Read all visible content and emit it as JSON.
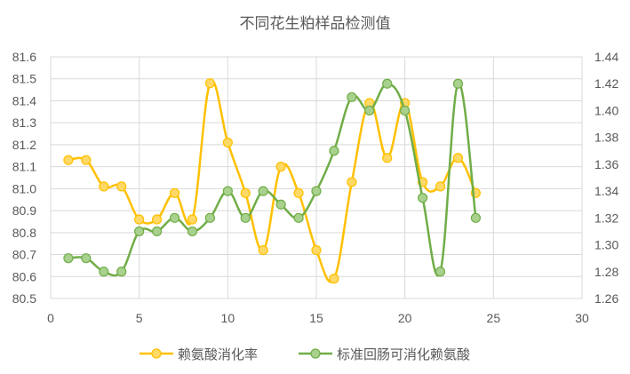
{
  "chart_data": {
    "type": "line",
    "title": "不同花生粕样品检测值",
    "xlabel": "",
    "ylabel": "",
    "xlim": [
      0,
      30
    ],
    "xticks": [
      0,
      5,
      10,
      15,
      20,
      25,
      30
    ],
    "ylim": [
      80.5,
      81.6
    ],
    "yticks": [
      80.5,
      80.6,
      80.7,
      80.8,
      80.9,
      81.0,
      81.1,
      81.2,
      81.3,
      81.4,
      81.5,
      81.6
    ],
    "yticks_labels": [
      "80.5",
      "80.6",
      "80.7",
      "80.8",
      "80.9",
      "81.0",
      "81.1",
      "81.2",
      "81.3",
      "81.4",
      "81.5",
      "81.6"
    ],
    "y2lim": [
      1.26,
      1.44
    ],
    "y2ticks": [
      1.26,
      1.28,
      1.3,
      1.32,
      1.34,
      1.36,
      1.38,
      1.4,
      1.42,
      1.44
    ],
    "y2ticks_labels": [
      "1.26",
      "1.28",
      "1.30",
      "1.32",
      "1.34",
      "1.36",
      "1.38",
      "1.40",
      "1.42",
      "1.44"
    ],
    "grid": true,
    "legend_position": "bottom",
    "x": [
      1,
      2,
      3,
      4,
      5,
      6,
      7,
      8,
      9,
      10,
      11,
      12,
      13,
      14,
      15,
      16,
      17,
      18,
      19,
      20,
      21,
      22,
      23,
      24
    ],
    "series": [
      {
        "name": "赖氨酸消化率",
        "axis": "left",
        "color": "#FFC000",
        "marker_fill": "#FFD966",
        "values": [
          81.13,
          81.13,
          81.01,
          81.01,
          80.86,
          80.86,
          80.98,
          80.86,
          81.48,
          81.21,
          80.98,
          80.72,
          81.1,
          80.98,
          80.72,
          80.59,
          81.03,
          81.39,
          81.14,
          81.39,
          81.03,
          81.01,
          81.14,
          80.98
        ]
      },
      {
        "name": "标准回肠可消化赖氨酸",
        "axis": "right",
        "color": "#70AD47",
        "marker_fill": "#A9D18E",
        "values": [
          1.29,
          1.29,
          1.28,
          1.28,
          1.31,
          1.31,
          1.32,
          1.31,
          1.32,
          1.34,
          1.32,
          1.34,
          1.33,
          1.32,
          1.34,
          1.37,
          1.41,
          1.4,
          1.42,
          1.4,
          1.335,
          1.28,
          1.42,
          1.32
        ]
      }
    ]
  }
}
